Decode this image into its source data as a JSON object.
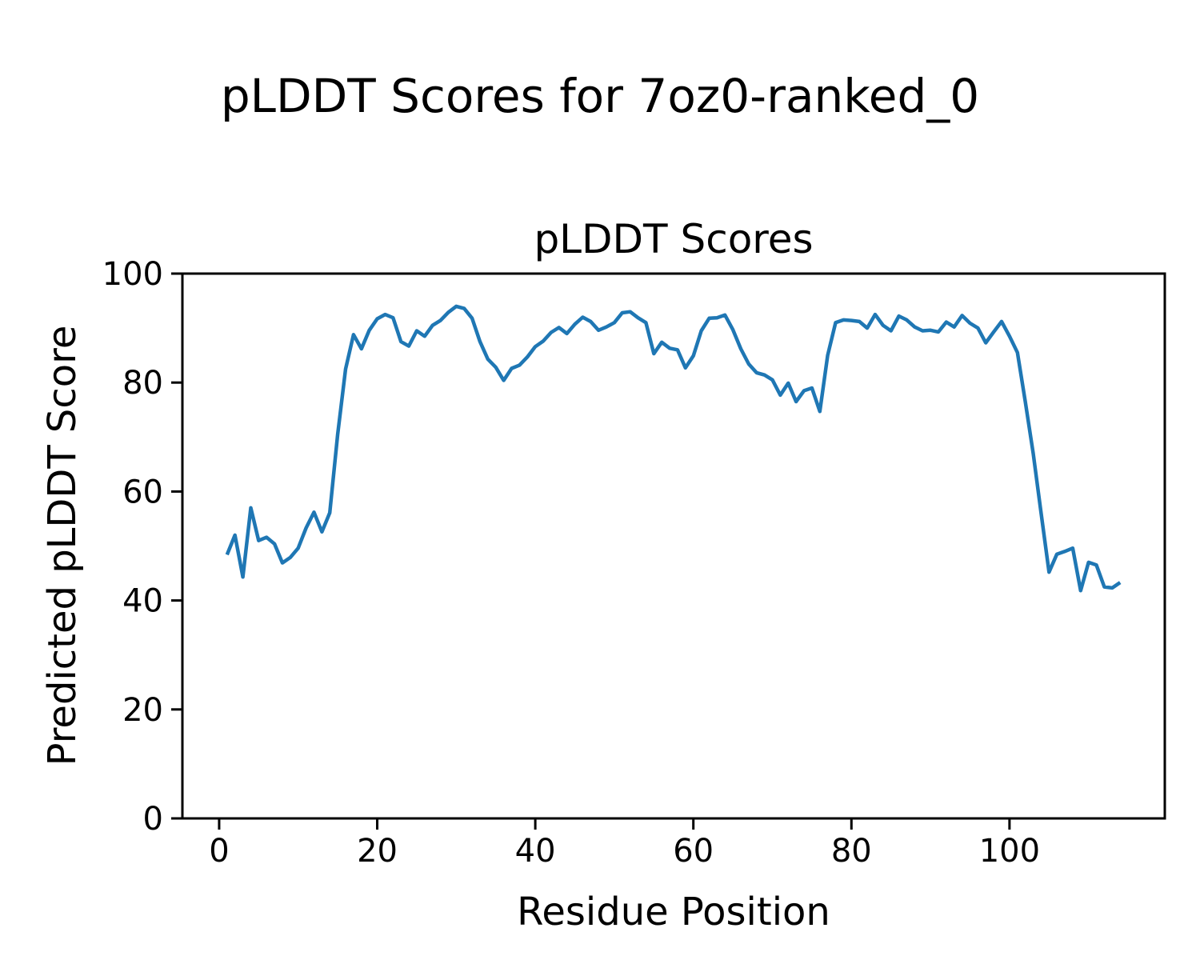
{
  "figure": {
    "title": "pLDDT Scores for 7oz0-ranked_0",
    "background_color": "#ffffff"
  },
  "chart_data": {
    "type": "line",
    "title": "pLDDT Scores",
    "xlabel": "Residue Position",
    "ylabel": "Predicted pLDDT Score",
    "xlim": [
      -4.65,
      119.65
    ],
    "ylim": [
      0,
      100
    ],
    "x_ticks": [
      0,
      20,
      40,
      60,
      80,
      100
    ],
    "y_ticks": [
      0,
      20,
      40,
      60,
      80,
      100
    ],
    "grid": false,
    "legend": "none",
    "line_color": "#1f77b4",
    "line_width": 4.5,
    "series": [
      {
        "name": "pLDDT",
        "x_start": 1,
        "x_step": 1,
        "y": [
          48.4,
          52.0,
          44.3,
          57.0,
          51.0,
          51.6,
          50.4,
          46.9,
          47.9,
          49.6,
          53.3,
          56.2,
          52.6,
          56.1,
          70.5,
          82.5,
          88.8,
          86.2,
          89.6,
          91.7,
          92.5,
          91.9,
          87.5,
          86.7,
          89.5,
          88.5,
          90.5,
          91.4,
          92.9,
          94.0,
          93.6,
          91.8,
          87.5,
          84.3,
          82.8,
          80.4,
          82.6,
          83.2,
          84.7,
          86.6,
          87.6,
          89.2,
          90.1,
          89.0,
          90.7,
          92.0,
          91.2,
          89.6,
          90.2,
          91.0,
          92.8,
          93.0,
          91.9,
          91.0,
          85.3,
          87.4,
          86.3,
          86.0,
          82.7,
          84.9,
          89.5,
          91.8,
          91.9,
          92.4,
          89.7,
          86.2,
          83.4,
          81.8,
          81.4,
          80.5,
          77.7,
          79.9,
          76.5,
          78.5,
          79.0,
          74.7,
          85.0,
          91.0,
          91.5,
          91.4,
          91.2,
          90.0,
          92.5,
          90.5,
          89.5,
          92.2,
          91.5,
          90.2,
          89.5,
          89.6,
          89.3,
          91.1,
          90.2,
          92.3,
          90.9,
          90.0,
          87.3,
          89.3,
          91.2,
          88.5,
          85.5,
          76.5,
          67.0,
          56.0,
          45.2,
          48.5,
          49.0,
          49.6,
          41.8,
          47.0,
          46.5,
          42.5,
          42.3,
          43.3
        ]
      }
    ]
  }
}
